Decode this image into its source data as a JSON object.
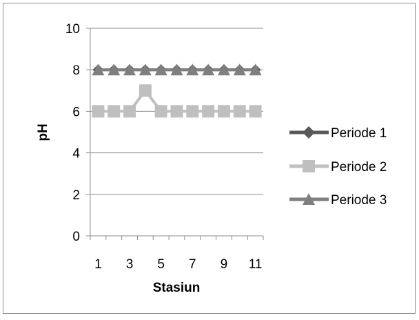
{
  "chart_data": {
    "type": "line",
    "title": "",
    "xlabel": "Stasiun",
    "ylabel": "pH",
    "x": [
      1,
      2,
      3,
      4,
      5,
      6,
      7,
      8,
      9,
      10,
      11
    ],
    "x_tick_labels": [
      "1",
      "3",
      "5",
      "7",
      "9",
      "11"
    ],
    "y_tick_labels": [
      "0",
      "2",
      "4",
      "6",
      "8",
      "10"
    ],
    "xlim": [
      0.5,
      11.5
    ],
    "ylim": [
      0,
      10
    ],
    "grid": "horizontal",
    "legend_position": "right",
    "series": [
      {
        "name": "Periode 1",
        "marker": "diamond",
        "color": "#595959",
        "values": [
          8,
          8,
          8,
          8,
          8,
          8,
          8,
          8,
          8,
          8,
          8
        ]
      },
      {
        "name": "Periode 2",
        "marker": "square",
        "color": "#bfbfbf",
        "values": [
          6,
          6,
          6,
          7,
          6,
          6,
          6,
          6,
          6,
          6,
          6
        ]
      },
      {
        "name": "Periode 3",
        "marker": "triangle",
        "color": "#7f7f7f",
        "values": [
          8,
          8,
          8,
          8,
          8,
          8,
          8,
          8,
          8,
          8,
          8
        ]
      }
    ]
  }
}
